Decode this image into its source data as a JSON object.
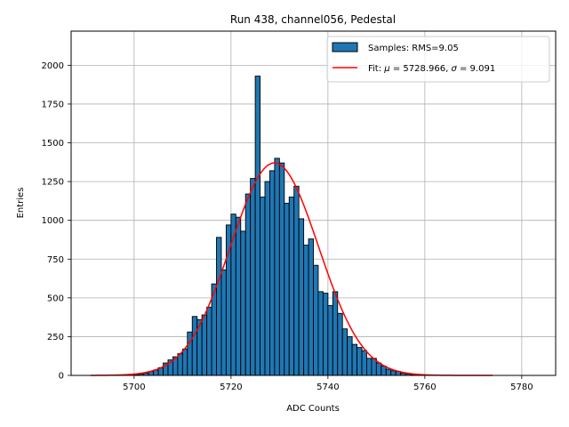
{
  "chart_data": {
    "type": "bar",
    "title": "Run 438, channel056, Pedestal",
    "xlabel": "ADC Counts",
    "ylabel": "Entries",
    "xlim": [
      5687,
      5787
    ],
    "ylim": [
      0,
      2220
    ],
    "grid": true,
    "legend_position": "top-right",
    "x_ticks": [
      5700,
      5720,
      5740,
      5760,
      5780
    ],
    "y_ticks": [
      0,
      250,
      500,
      750,
      1000,
      1250,
      1500,
      1750,
      2000
    ],
    "bin_start": 5699,
    "bin_width": 1,
    "bin_counts": [
      2,
      5,
      8,
      15,
      25,
      35,
      50,
      80,
      100,
      120,
      140,
      170,
      280,
      380,
      360,
      390,
      440,
      590,
      890,
      680,
      970,
      1040,
      1020,
      930,
      1170,
      1270,
      1930,
      1150,
      1250,
      1320,
      1400,
      1370,
      1110,
      1150,
      1220,
      1010,
      840,
      880,
      710,
      540,
      530,
      450,
      540,
      400,
      300,
      250,
      200,
      180,
      160,
      110,
      110,
      80,
      60,
      40,
      30,
      25,
      15,
      10,
      5,
      3
    ],
    "fit_curve": {
      "mu": 5728.966,
      "sigma": 9.091,
      "amplitude": 1370,
      "x_range": [
        5691,
        5774
      ]
    },
    "legend": {
      "samples_label": "Samples: RMS=9.05",
      "fit_prefix": "Fit: ",
      "fit_mu_symbol": "μ",
      "fit_mu_value": " = 5728.966, ",
      "fit_sigma_symbol": "σ",
      "fit_sigma_value": " = 9.091"
    },
    "colors": {
      "bar_fill": "#1f77b4",
      "bar_edge": "#000000",
      "fit_line": "#ff0000",
      "grid": "#b0b0b0"
    }
  }
}
